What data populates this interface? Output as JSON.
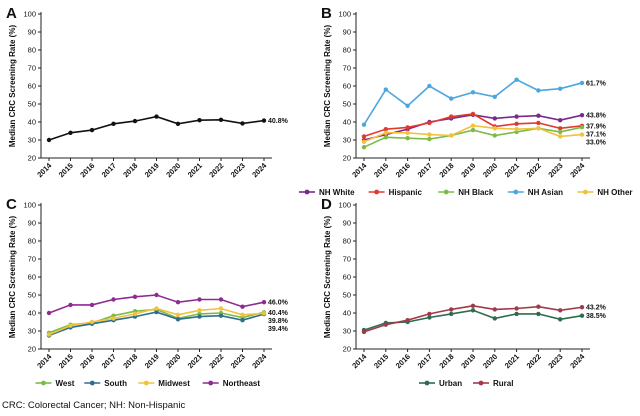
{
  "footnote": "CRC: Colorectal Cancer; NH: Non-Hispanic",
  "chart_data": [
    {
      "panel_label": "A",
      "type": "line",
      "ylabel": "Median CRC Screening Rate (%)",
      "ylim": [
        20,
        100
      ],
      "yticks": [
        20,
        30,
        40,
        50,
        60,
        70,
        80,
        90,
        100
      ],
      "x": [
        "2014",
        "2015",
        "2016",
        "2017",
        "2018",
        "2019",
        "2020",
        "2021",
        "2022",
        "2023",
        "2024"
      ],
      "grid": false,
      "legend": "none",
      "series": [
        {
          "name": "",
          "color": "#111111",
          "values": [
            30,
            34,
            35.5,
            39,
            40.5,
            43,
            39,
            41,
            41.2,
            39.2,
            40.8
          ],
          "end_label": "40.8%"
        }
      ]
    },
    {
      "panel_label": "B",
      "type": "line",
      "ylabel": "Median CRC Screening Rate (%)",
      "ylim": [
        20,
        100
      ],
      "yticks": [
        20,
        30,
        40,
        50,
        60,
        70,
        80,
        90,
        100
      ],
      "x": [
        "2014",
        "2015",
        "2016",
        "2017",
        "2018",
        "2019",
        "2020",
        "2021",
        "2022",
        "2023",
        "2024"
      ],
      "grid": false,
      "legend": "bottom",
      "series": [
        {
          "name": "NH White",
          "color": "#7b2a8c",
          "values": [
            30,
            33,
            36,
            40,
            42,
            44,
            42,
            43,
            43.5,
            41,
            43.8
          ],
          "end_label": "43.8%"
        },
        {
          "name": "Hispanic",
          "color": "#e2392f",
          "values": [
            32,
            36,
            37,
            39.5,
            43,
            44.5,
            37.5,
            39,
            39.5,
            36.5,
            37.9
          ],
          "end_label": "37.9%"
        },
        {
          "name": "NH Black",
          "color": "#7dbb48",
          "values": [
            26,
            31.5,
            31,
            30.5,
            32.5,
            35.5,
            32.5,
            34.5,
            36.5,
            34.5,
            37.1
          ],
          "end_label": "37.1%"
        },
        {
          "name": "NH Asian",
          "color": "#4aa7e0",
          "values": [
            38.5,
            58,
            49,
            60,
            53,
            56.5,
            54,
            63.5,
            57.5,
            58.5,
            61.7
          ],
          "end_label": "61.7%"
        },
        {
          "name": "NH Other",
          "color": "#f2c23a",
          "values": [
            29,
            34,
            34,
            33,
            32.5,
            38,
            36.5,
            36,
            36.5,
            32,
            33.0
          ],
          "end_label": "33.0%"
        }
      ]
    },
    {
      "panel_label": "C",
      "type": "line",
      "ylabel": "Median CRC Screening Rate (%)",
      "ylim": [
        20,
        100
      ],
      "yticks": [
        20,
        30,
        40,
        50,
        60,
        70,
        80,
        90,
        100
      ],
      "x": [
        "2014",
        "2015",
        "2016",
        "2017",
        "2018",
        "2019",
        "2020",
        "2021",
        "2022",
        "2023",
        "2024"
      ],
      "grid": false,
      "legend": "bottom",
      "series": [
        {
          "name": "West",
          "color": "#7dbb48",
          "values": [
            29,
            33.5,
            34.5,
            38.5,
            41,
            42,
            37,
            39.5,
            40,
            37.5,
            40.4
          ],
          "end_label": "40.4%"
        },
        {
          "name": "South",
          "color": "#2e6f8e",
          "values": [
            27.5,
            32,
            34,
            36,
            38,
            40.5,
            36.5,
            38,
            38.5,
            36,
            39.4
          ],
          "end_label": "39.4%"
        },
        {
          "name": "Midwest",
          "color": "#f2c23a",
          "values": [
            28,
            33,
            35,
            37,
            39.5,
            42.5,
            39,
            41.5,
            42.5,
            39,
            39.8
          ],
          "end_label": "39.8%"
        },
        {
          "name": "Northeast",
          "color": "#8e2a92",
          "values": [
            40,
            44.5,
            44.5,
            47.5,
            49,
            50,
            46,
            47.5,
            47.5,
            43.5,
            46.0
          ],
          "end_label": "46.0%"
        }
      ]
    },
    {
      "panel_label": "D",
      "type": "line",
      "ylabel": "Median CRC Screening Rate (%)",
      "ylim": [
        20,
        100
      ],
      "yticks": [
        20,
        30,
        40,
        50,
        60,
        70,
        80,
        90,
        100
      ],
      "x": [
        "2014",
        "2015",
        "2016",
        "2017",
        "2018",
        "2019",
        "2020",
        "2021",
        "2022",
        "2023",
        "2024"
      ],
      "grid": false,
      "legend": "bottom",
      "series": [
        {
          "name": "Urban",
          "color": "#2f6b4f",
          "values": [
            30.5,
            34.5,
            35,
            37.5,
            39.5,
            41.5,
            37,
            39.5,
            39.5,
            36.5,
            38.5
          ],
          "end_label": "38.5%"
        },
        {
          "name": "Rural",
          "color": "#a03a4a",
          "values": [
            29.5,
            33.5,
            36,
            39.5,
            42,
            44,
            42,
            42.5,
            43.5,
            41.5,
            43.2
          ],
          "end_label": "43.2%"
        }
      ]
    }
  ]
}
